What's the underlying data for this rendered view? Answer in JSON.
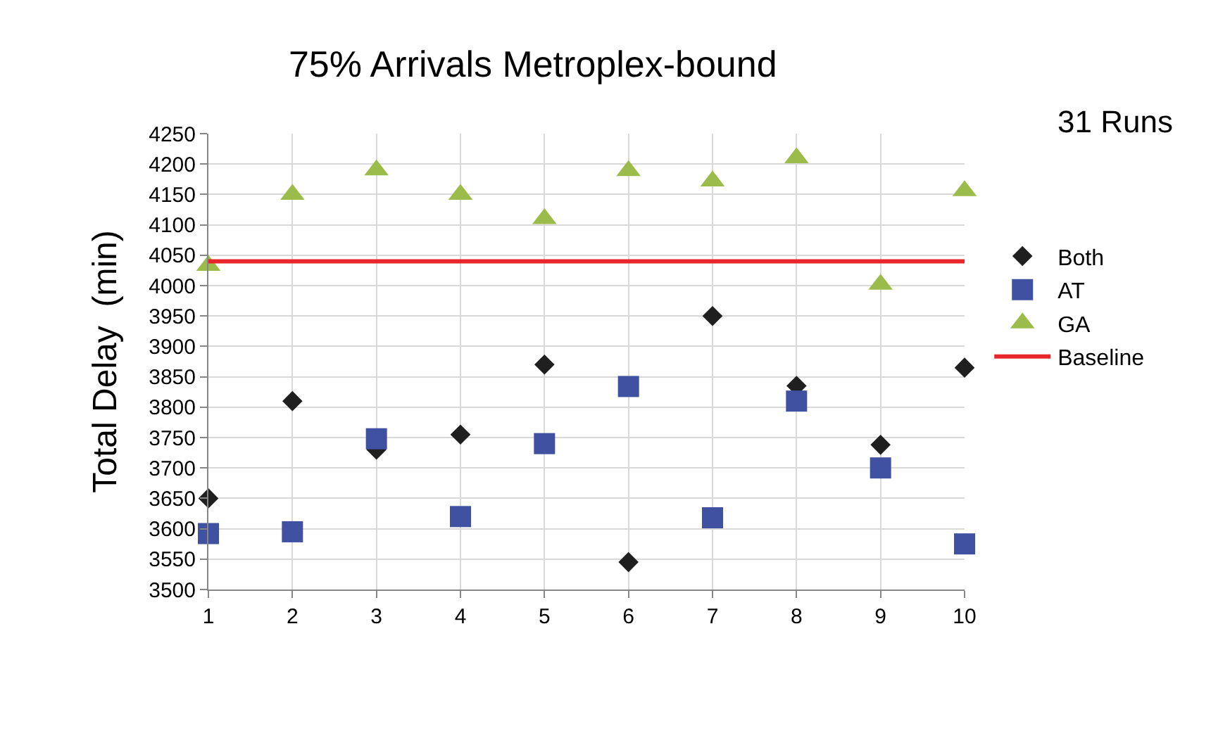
{
  "chart_data": {
    "type": "scatter",
    "title": "75% Arrivals Metroplex-bound",
    "ylabel": "Total Delay  (min)",
    "annotations": [
      "31 Runs"
    ],
    "x": [
      1,
      2,
      3,
      4,
      5,
      6,
      7,
      8,
      9,
      10
    ],
    "series": [
      {
        "name": "Both",
        "color": "#1f1f1f",
        "marker": "diamond",
        "values": [
          3650,
          3810,
          3730,
          3755,
          3870,
          3545,
          3950,
          3835,
          3738,
          3865
        ]
      },
      {
        "name": "AT",
        "color": "#3f51a0",
        "marker": "square",
        "values": [
          3592,
          3595,
          3748,
          3620,
          3740,
          3834,
          3618,
          3810,
          3700,
          3575
        ]
      },
      {
        "name": "GA",
        "color": "#9bbb4a",
        "marker": "triangle",
        "values": [
          4033,
          4150,
          4190,
          4150,
          4110,
          4189,
          4172,
          4210,
          4002,
          4156
        ]
      }
    ],
    "ref_lines": [
      {
        "axis": "y",
        "value": 4040,
        "label": "Baseline",
        "color": "#e8262a"
      }
    ],
    "xlim": [
      1,
      10
    ],
    "xticks": [
      1,
      2,
      3,
      4,
      5,
      6,
      7,
      8,
      9,
      10
    ],
    "ylim": [
      3500,
      4250
    ],
    "yticks": [
      3500,
      3550,
      3600,
      3650,
      3700,
      3750,
      3800,
      3850,
      3900,
      3950,
      4000,
      4050,
      4100,
      4150,
      4200,
      4250
    ],
    "grid": true,
    "legend": "right"
  }
}
